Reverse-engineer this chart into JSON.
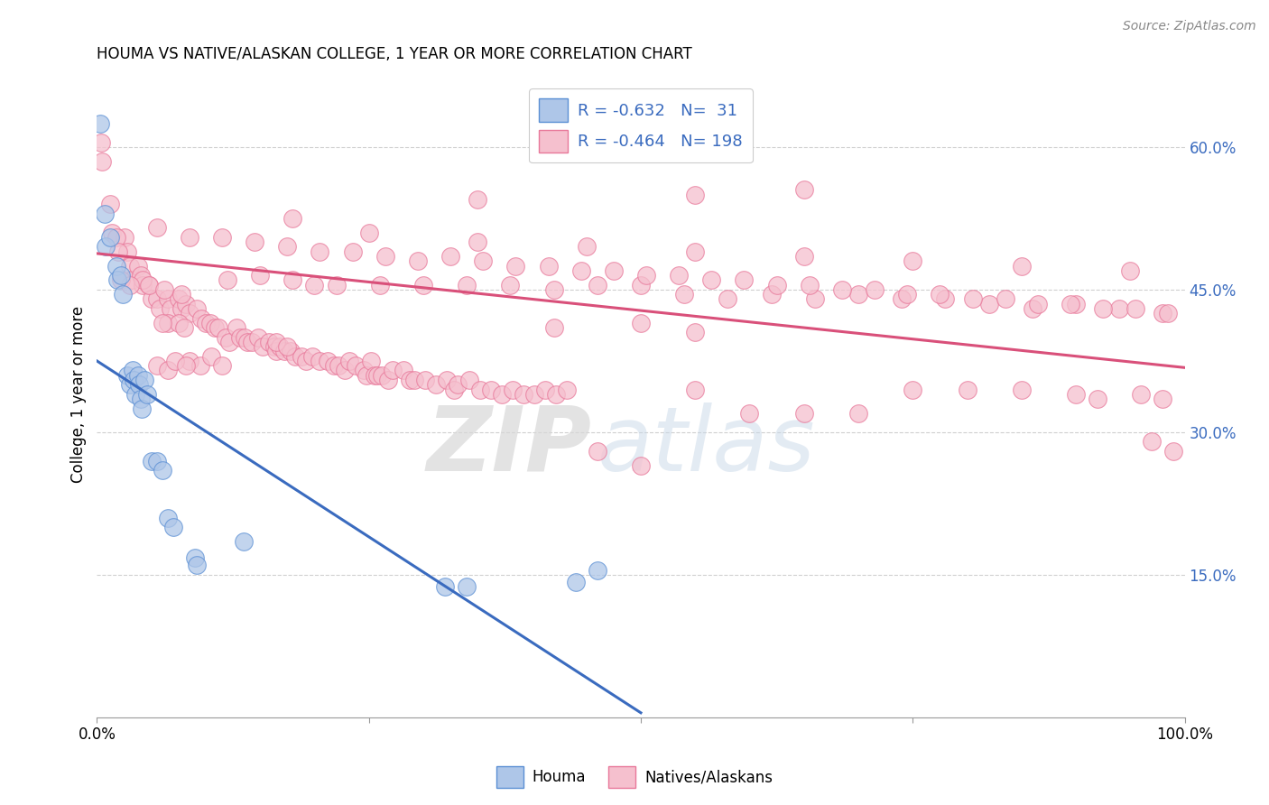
{
  "title": "HOUMA VS NATIVE/ALASKAN COLLEGE, 1 YEAR OR MORE CORRELATION CHART",
  "source": "Source: ZipAtlas.com",
  "ylabel": "College, 1 year or more",
  "xlim": [
    0.0,
    1.0
  ],
  "ylim": [
    0.0,
    0.68
  ],
  "yticks": [
    0.15,
    0.3,
    0.45,
    0.6
  ],
  "ytick_labels": [
    "15.0%",
    "30.0%",
    "45.0%",
    "60.0%"
  ],
  "houma_R": -0.632,
  "houma_N": 31,
  "native_R": -0.464,
  "native_N": 198,
  "houma_color": "#aec6e8",
  "native_color": "#f5c0ce",
  "houma_edge_color": "#5b8fd4",
  "native_edge_color": "#e8789a",
  "houma_line_color": "#3a6bbf",
  "native_line_color": "#d9507a",
  "houma_scatter": [
    [
      0.003,
      0.625
    ],
    [
      0.007,
      0.53
    ],
    [
      0.008,
      0.495
    ],
    [
      0.012,
      0.505
    ],
    [
      0.018,
      0.475
    ],
    [
      0.019,
      0.46
    ],
    [
      0.022,
      0.465
    ],
    [
      0.024,
      0.445
    ],
    [
      0.028,
      0.36
    ],
    [
      0.03,
      0.35
    ],
    [
      0.033,
      0.365
    ],
    [
      0.034,
      0.355
    ],
    [
      0.035,
      0.34
    ],
    [
      0.038,
      0.36
    ],
    [
      0.039,
      0.35
    ],
    [
      0.04,
      0.335
    ],
    [
      0.041,
      0.325
    ],
    [
      0.044,
      0.355
    ],
    [
      0.046,
      0.34
    ],
    [
      0.05,
      0.27
    ],
    [
      0.055,
      0.27
    ],
    [
      0.06,
      0.26
    ],
    [
      0.065,
      0.21
    ],
    [
      0.07,
      0.2
    ],
    [
      0.09,
      0.168
    ],
    [
      0.092,
      0.16
    ],
    [
      0.135,
      0.185
    ],
    [
      0.32,
      0.138
    ],
    [
      0.34,
      0.138
    ],
    [
      0.44,
      0.142
    ],
    [
      0.46,
      0.155
    ]
  ],
  "native_scatter": [
    [
      0.004,
      0.605
    ],
    [
      0.005,
      0.585
    ],
    [
      0.012,
      0.54
    ],
    [
      0.014,
      0.51
    ],
    [
      0.025,
      0.505
    ],
    [
      0.028,
      0.49
    ],
    [
      0.03,
      0.475
    ],
    [
      0.032,
      0.46
    ],
    [
      0.018,
      0.505
    ],
    [
      0.02,
      0.49
    ],
    [
      0.038,
      0.475
    ],
    [
      0.04,
      0.465
    ],
    [
      0.042,
      0.455
    ],
    [
      0.048,
      0.455
    ],
    [
      0.05,
      0.44
    ],
    [
      0.055,
      0.44
    ],
    [
      0.058,
      0.43
    ],
    [
      0.065,
      0.44
    ],
    [
      0.068,
      0.43
    ],
    [
      0.075,
      0.44
    ],
    [
      0.078,
      0.43
    ],
    [
      0.082,
      0.435
    ],
    [
      0.085,
      0.425
    ],
    [
      0.092,
      0.43
    ],
    [
      0.096,
      0.42
    ],
    [
      0.1,
      0.415
    ],
    [
      0.104,
      0.415
    ],
    [
      0.108,
      0.41
    ],
    [
      0.112,
      0.41
    ],
    [
      0.118,
      0.4
    ],
    [
      0.122,
      0.395
    ],
    [
      0.128,
      0.41
    ],
    [
      0.132,
      0.4
    ],
    [
      0.136,
      0.4
    ],
    [
      0.138,
      0.395
    ],
    [
      0.142,
      0.395
    ],
    [
      0.148,
      0.4
    ],
    [
      0.152,
      0.39
    ],
    [
      0.158,
      0.395
    ],
    [
      0.163,
      0.39
    ],
    [
      0.165,
      0.385
    ],
    [
      0.168,
      0.39
    ],
    [
      0.172,
      0.385
    ],
    [
      0.178,
      0.385
    ],
    [
      0.182,
      0.38
    ],
    [
      0.188,
      0.38
    ],
    [
      0.192,
      0.375
    ],
    [
      0.198,
      0.38
    ],
    [
      0.205,
      0.375
    ],
    [
      0.212,
      0.375
    ],
    [
      0.218,
      0.37
    ],
    [
      0.222,
      0.37
    ],
    [
      0.228,
      0.365
    ],
    [
      0.232,
      0.375
    ],
    [
      0.238,
      0.37
    ],
    [
      0.245,
      0.365
    ],
    [
      0.248,
      0.36
    ],
    [
      0.252,
      0.375
    ],
    [
      0.255,
      0.36
    ],
    [
      0.258,
      0.36
    ],
    [
      0.262,
      0.36
    ],
    [
      0.268,
      0.355
    ],
    [
      0.272,
      0.365
    ],
    [
      0.282,
      0.365
    ],
    [
      0.288,
      0.355
    ],
    [
      0.292,
      0.355
    ],
    [
      0.302,
      0.355
    ],
    [
      0.312,
      0.35
    ],
    [
      0.322,
      0.355
    ],
    [
      0.328,
      0.345
    ],
    [
      0.332,
      0.35
    ],
    [
      0.342,
      0.355
    ],
    [
      0.352,
      0.345
    ],
    [
      0.362,
      0.345
    ],
    [
      0.372,
      0.34
    ],
    [
      0.382,
      0.345
    ],
    [
      0.392,
      0.34
    ],
    [
      0.402,
      0.34
    ],
    [
      0.412,
      0.345
    ],
    [
      0.422,
      0.34
    ],
    [
      0.432,
      0.345
    ],
    [
      0.15,
      0.465
    ],
    [
      0.18,
      0.46
    ],
    [
      0.22,
      0.455
    ],
    [
      0.26,
      0.455
    ],
    [
      0.3,
      0.455
    ],
    [
      0.34,
      0.455
    ],
    [
      0.38,
      0.455
    ],
    [
      0.42,
      0.45
    ],
    [
      0.46,
      0.455
    ],
    [
      0.5,
      0.455
    ],
    [
      0.54,
      0.445
    ],
    [
      0.58,
      0.44
    ],
    [
      0.62,
      0.445
    ],
    [
      0.66,
      0.44
    ],
    [
      0.7,
      0.445
    ],
    [
      0.74,
      0.44
    ],
    [
      0.78,
      0.44
    ],
    [
      0.82,
      0.435
    ],
    [
      0.86,
      0.43
    ],
    [
      0.9,
      0.435
    ],
    [
      0.94,
      0.43
    ],
    [
      0.98,
      0.425
    ],
    [
      0.055,
      0.515
    ],
    [
      0.085,
      0.505
    ],
    [
      0.115,
      0.505
    ],
    [
      0.145,
      0.5
    ],
    [
      0.175,
      0.495
    ],
    [
      0.205,
      0.49
    ],
    [
      0.235,
      0.49
    ],
    [
      0.265,
      0.485
    ],
    [
      0.295,
      0.48
    ],
    [
      0.325,
      0.485
    ],
    [
      0.355,
      0.48
    ],
    [
      0.385,
      0.475
    ],
    [
      0.415,
      0.475
    ],
    [
      0.445,
      0.47
    ],
    [
      0.475,
      0.47
    ],
    [
      0.505,
      0.465
    ],
    [
      0.535,
      0.465
    ],
    [
      0.565,
      0.46
    ],
    [
      0.595,
      0.46
    ],
    [
      0.625,
      0.455
    ],
    [
      0.655,
      0.455
    ],
    [
      0.685,
      0.45
    ],
    [
      0.715,
      0.45
    ],
    [
      0.745,
      0.445
    ],
    [
      0.775,
      0.445
    ],
    [
      0.805,
      0.44
    ],
    [
      0.835,
      0.44
    ],
    [
      0.865,
      0.435
    ],
    [
      0.895,
      0.435
    ],
    [
      0.925,
      0.43
    ],
    [
      0.955,
      0.43
    ],
    [
      0.985,
      0.425
    ],
    [
      0.18,
      0.525
    ],
    [
      0.25,
      0.51
    ],
    [
      0.35,
      0.5
    ],
    [
      0.45,
      0.495
    ],
    [
      0.55,
      0.49
    ],
    [
      0.65,
      0.485
    ],
    [
      0.75,
      0.48
    ],
    [
      0.85,
      0.475
    ],
    [
      0.95,
      0.47
    ],
    [
      0.35,
      0.545
    ],
    [
      0.55,
      0.55
    ],
    [
      0.65,
      0.555
    ],
    [
      0.12,
      0.46
    ],
    [
      0.2,
      0.455
    ],
    [
      0.42,
      0.41
    ],
    [
      0.5,
      0.415
    ],
    [
      0.55,
      0.405
    ],
    [
      0.85,
      0.345
    ],
    [
      0.9,
      0.34
    ],
    [
      0.92,
      0.335
    ],
    [
      0.96,
      0.34
    ],
    [
      0.98,
      0.335
    ],
    [
      0.99,
      0.28
    ],
    [
      0.97,
      0.29
    ],
    [
      0.46,
      0.28
    ],
    [
      0.5,
      0.265
    ],
    [
      0.55,
      0.345
    ],
    [
      0.6,
      0.32
    ],
    [
      0.65,
      0.32
    ],
    [
      0.7,
      0.32
    ],
    [
      0.75,
      0.345
    ],
    [
      0.8,
      0.345
    ],
    [
      0.085,
      0.375
    ],
    [
      0.095,
      0.37
    ],
    [
      0.105,
      0.38
    ],
    [
      0.115,
      0.37
    ],
    [
      0.165,
      0.395
    ],
    [
      0.175,
      0.39
    ],
    [
      0.065,
      0.415
    ],
    [
      0.075,
      0.415
    ],
    [
      0.042,
      0.46
    ],
    [
      0.048,
      0.455
    ],
    [
      0.062,
      0.45
    ],
    [
      0.078,
      0.445
    ],
    [
      0.022,
      0.46
    ],
    [
      0.03,
      0.455
    ],
    [
      0.06,
      0.415
    ],
    [
      0.08,
      0.41
    ],
    [
      0.055,
      0.37
    ],
    [
      0.065,
      0.365
    ],
    [
      0.072,
      0.375
    ],
    [
      0.082,
      0.37
    ]
  ],
  "houma_line": [
    [
      0.0,
      0.375
    ],
    [
      0.5,
      0.005
    ]
  ],
  "native_line": [
    [
      0.0,
      0.488
    ],
    [
      1.0,
      0.368
    ]
  ],
  "watermark_zip": "ZIP",
  "watermark_atlas": "atlas",
  "background_color": "#ffffff",
  "grid_color": "#d0d0d0"
}
